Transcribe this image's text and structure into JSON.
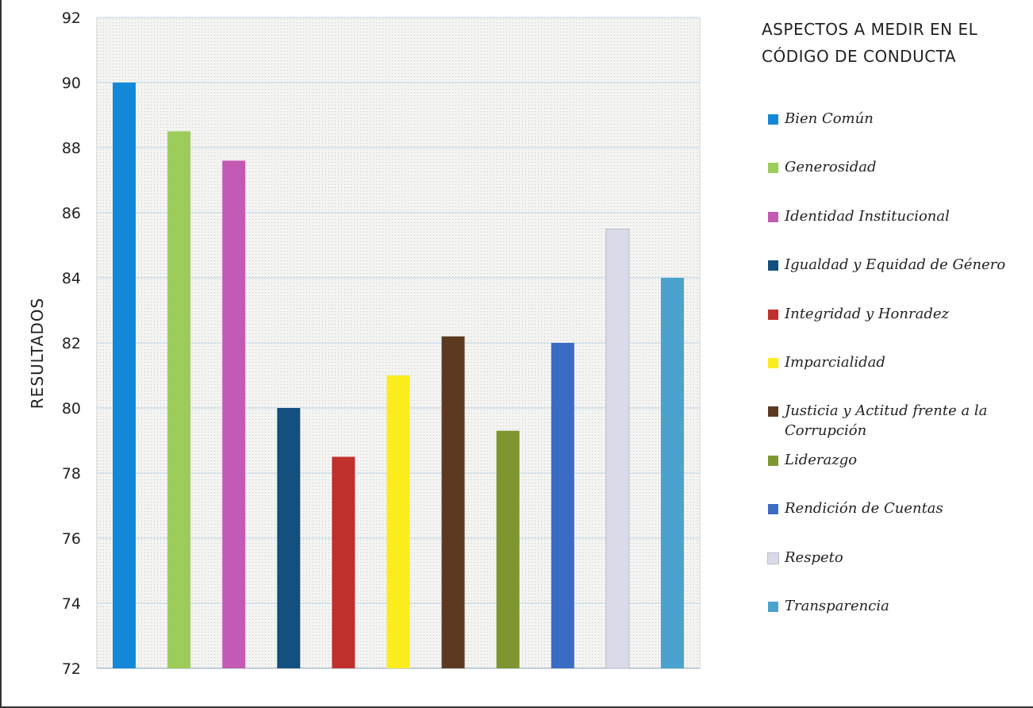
{
  "chart_data": {
    "type": "bar",
    "ylabel": "RESULTADOS",
    "xlabel": "",
    "ylim": [
      72,
      92
    ],
    "yticks": [
      72,
      74,
      76,
      78,
      80,
      82,
      84,
      86,
      88,
      90,
      92
    ],
    "grid": true,
    "legend_title": "ASPECTOS A MEDIR EN EL CÓDIGO DE CONDUCTA",
    "legend_position": "right",
    "categories": [
      "Bien Común",
      "Generosidad",
      "Identidad Institucional",
      "Igualdad y Equidad de Género",
      "Integridad y Honradez",
      "Imparcialidad",
      "Justicia y Actitud frente a la Corrupción",
      "Liderazgo",
      "Rendición de Cuentas",
      "Respeto",
      "Transparencia"
    ],
    "values": [
      90,
      88.5,
      87.6,
      80,
      78.5,
      81,
      82.2,
      79.3,
      82,
      85.5,
      84
    ],
    "colors": [
      "#1488d8",
      "#9ccc5a",
      "#c45ab4",
      "#134f7f",
      "#c0302c",
      "#fbec1e",
      "#5c3a21",
      "#7d9630",
      "#3b6cc4",
      "#d9dbe8",
      "#4aa3cd"
    ]
  }
}
